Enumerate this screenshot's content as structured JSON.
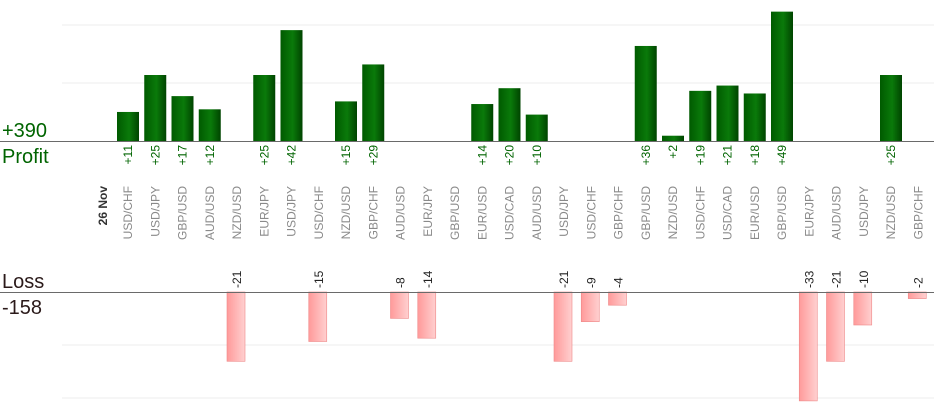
{
  "summary": {
    "profit_total": "+390",
    "profit_label": "Profit",
    "loss_label": "Loss",
    "loss_total": "-158"
  },
  "chart_data": {
    "type": "bar",
    "date_label": "26 Nov",
    "categories": [
      "USD/CHF",
      "USD/JPY",
      "GBP/USD",
      "AUD/USD",
      "NZD/USD",
      "EUR/JPY",
      "USD/JPY",
      "USD/CHF",
      "NZD/USD",
      "GBP/CHF",
      "AUD/USD",
      "EUR/JPY",
      "GBP/USD",
      "EUR/USD",
      "USD/CAD",
      "AUD/USD",
      "USD/JPY",
      "USD/CHF",
      "GBP/CHF",
      "GBP/USD",
      "NZD/USD",
      "USD/CHF",
      "USD/CAD",
      "EUR/USD",
      "GBP/USD",
      "EUR/JPY",
      "AUD/USD",
      "USD/JPY",
      "NZD/USD",
      "GBP/CHF"
    ],
    "series": [
      {
        "values": [
          11,
          25,
          17,
          12,
          null,
          25,
          42,
          null,
          15,
          29,
          null,
          null,
          null,
          14,
          20,
          10,
          null,
          null,
          null,
          36,
          2,
          19,
          21,
          18,
          49,
          null,
          null,
          null,
          25,
          null
        ]
      },
      {
        "values": [
          null,
          null,
          null,
          null,
          -21,
          null,
          null,
          -15,
          null,
          null,
          -8,
          -14,
          null,
          null,
          null,
          null,
          -21,
          -9,
          -4,
          null,
          null,
          null,
          null,
          null,
          null,
          -33,
          -21,
          -10,
          null,
          -2
        ]
      }
    ],
    "colors": {
      "profit": "#006400",
      "loss": "#ffb0b0"
    }
  }
}
